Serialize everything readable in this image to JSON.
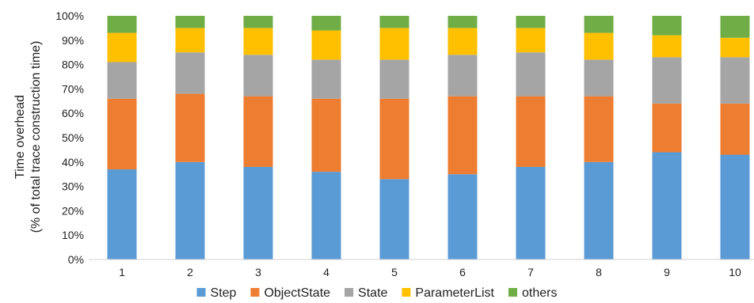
{
  "chart_data": {
    "type": "bar",
    "stacked": "percent",
    "categories": [
      "1",
      "2",
      "3",
      "4",
      "5",
      "6",
      "7",
      "8",
      "9",
      "10"
    ],
    "series": [
      {
        "name": "Step",
        "color": "#5B9BD5",
        "values": [
          37,
          40,
          38,
          36,
          33,
          35,
          38,
          40,
          44,
          43
        ]
      },
      {
        "name": "ObjectState",
        "color": "#ED7D31",
        "values": [
          29,
          28,
          29,
          30,
          33,
          32,
          29,
          27,
          20,
          21
        ]
      },
      {
        "name": "State",
        "color": "#A5A5A5",
        "values": [
          15,
          17,
          17,
          16,
          16,
          17,
          18,
          15,
          19,
          19
        ]
      },
      {
        "name": "ParameterList",
        "color": "#FFC000",
        "values": [
          12,
          10,
          11,
          12,
          13,
          11,
          10,
          11,
          9,
          8
        ]
      },
      {
        "name": "others",
        "color": "#70AD47",
        "values": [
          7,
          5,
          5,
          6,
          5,
          5,
          5,
          7,
          8,
          9
        ]
      }
    ],
    "ylabel_line1": "Time overhead",
    "ylabel_line2": "(% of total trace construction time)",
    "ylim": [
      0,
      100
    ],
    "yticks": [
      "0%",
      "10%",
      "20%",
      "30%",
      "40%",
      "50%",
      "60%",
      "70%",
      "80%",
      "90%",
      "100%"
    ],
    "grid": false,
    "legend": "bottom"
  }
}
